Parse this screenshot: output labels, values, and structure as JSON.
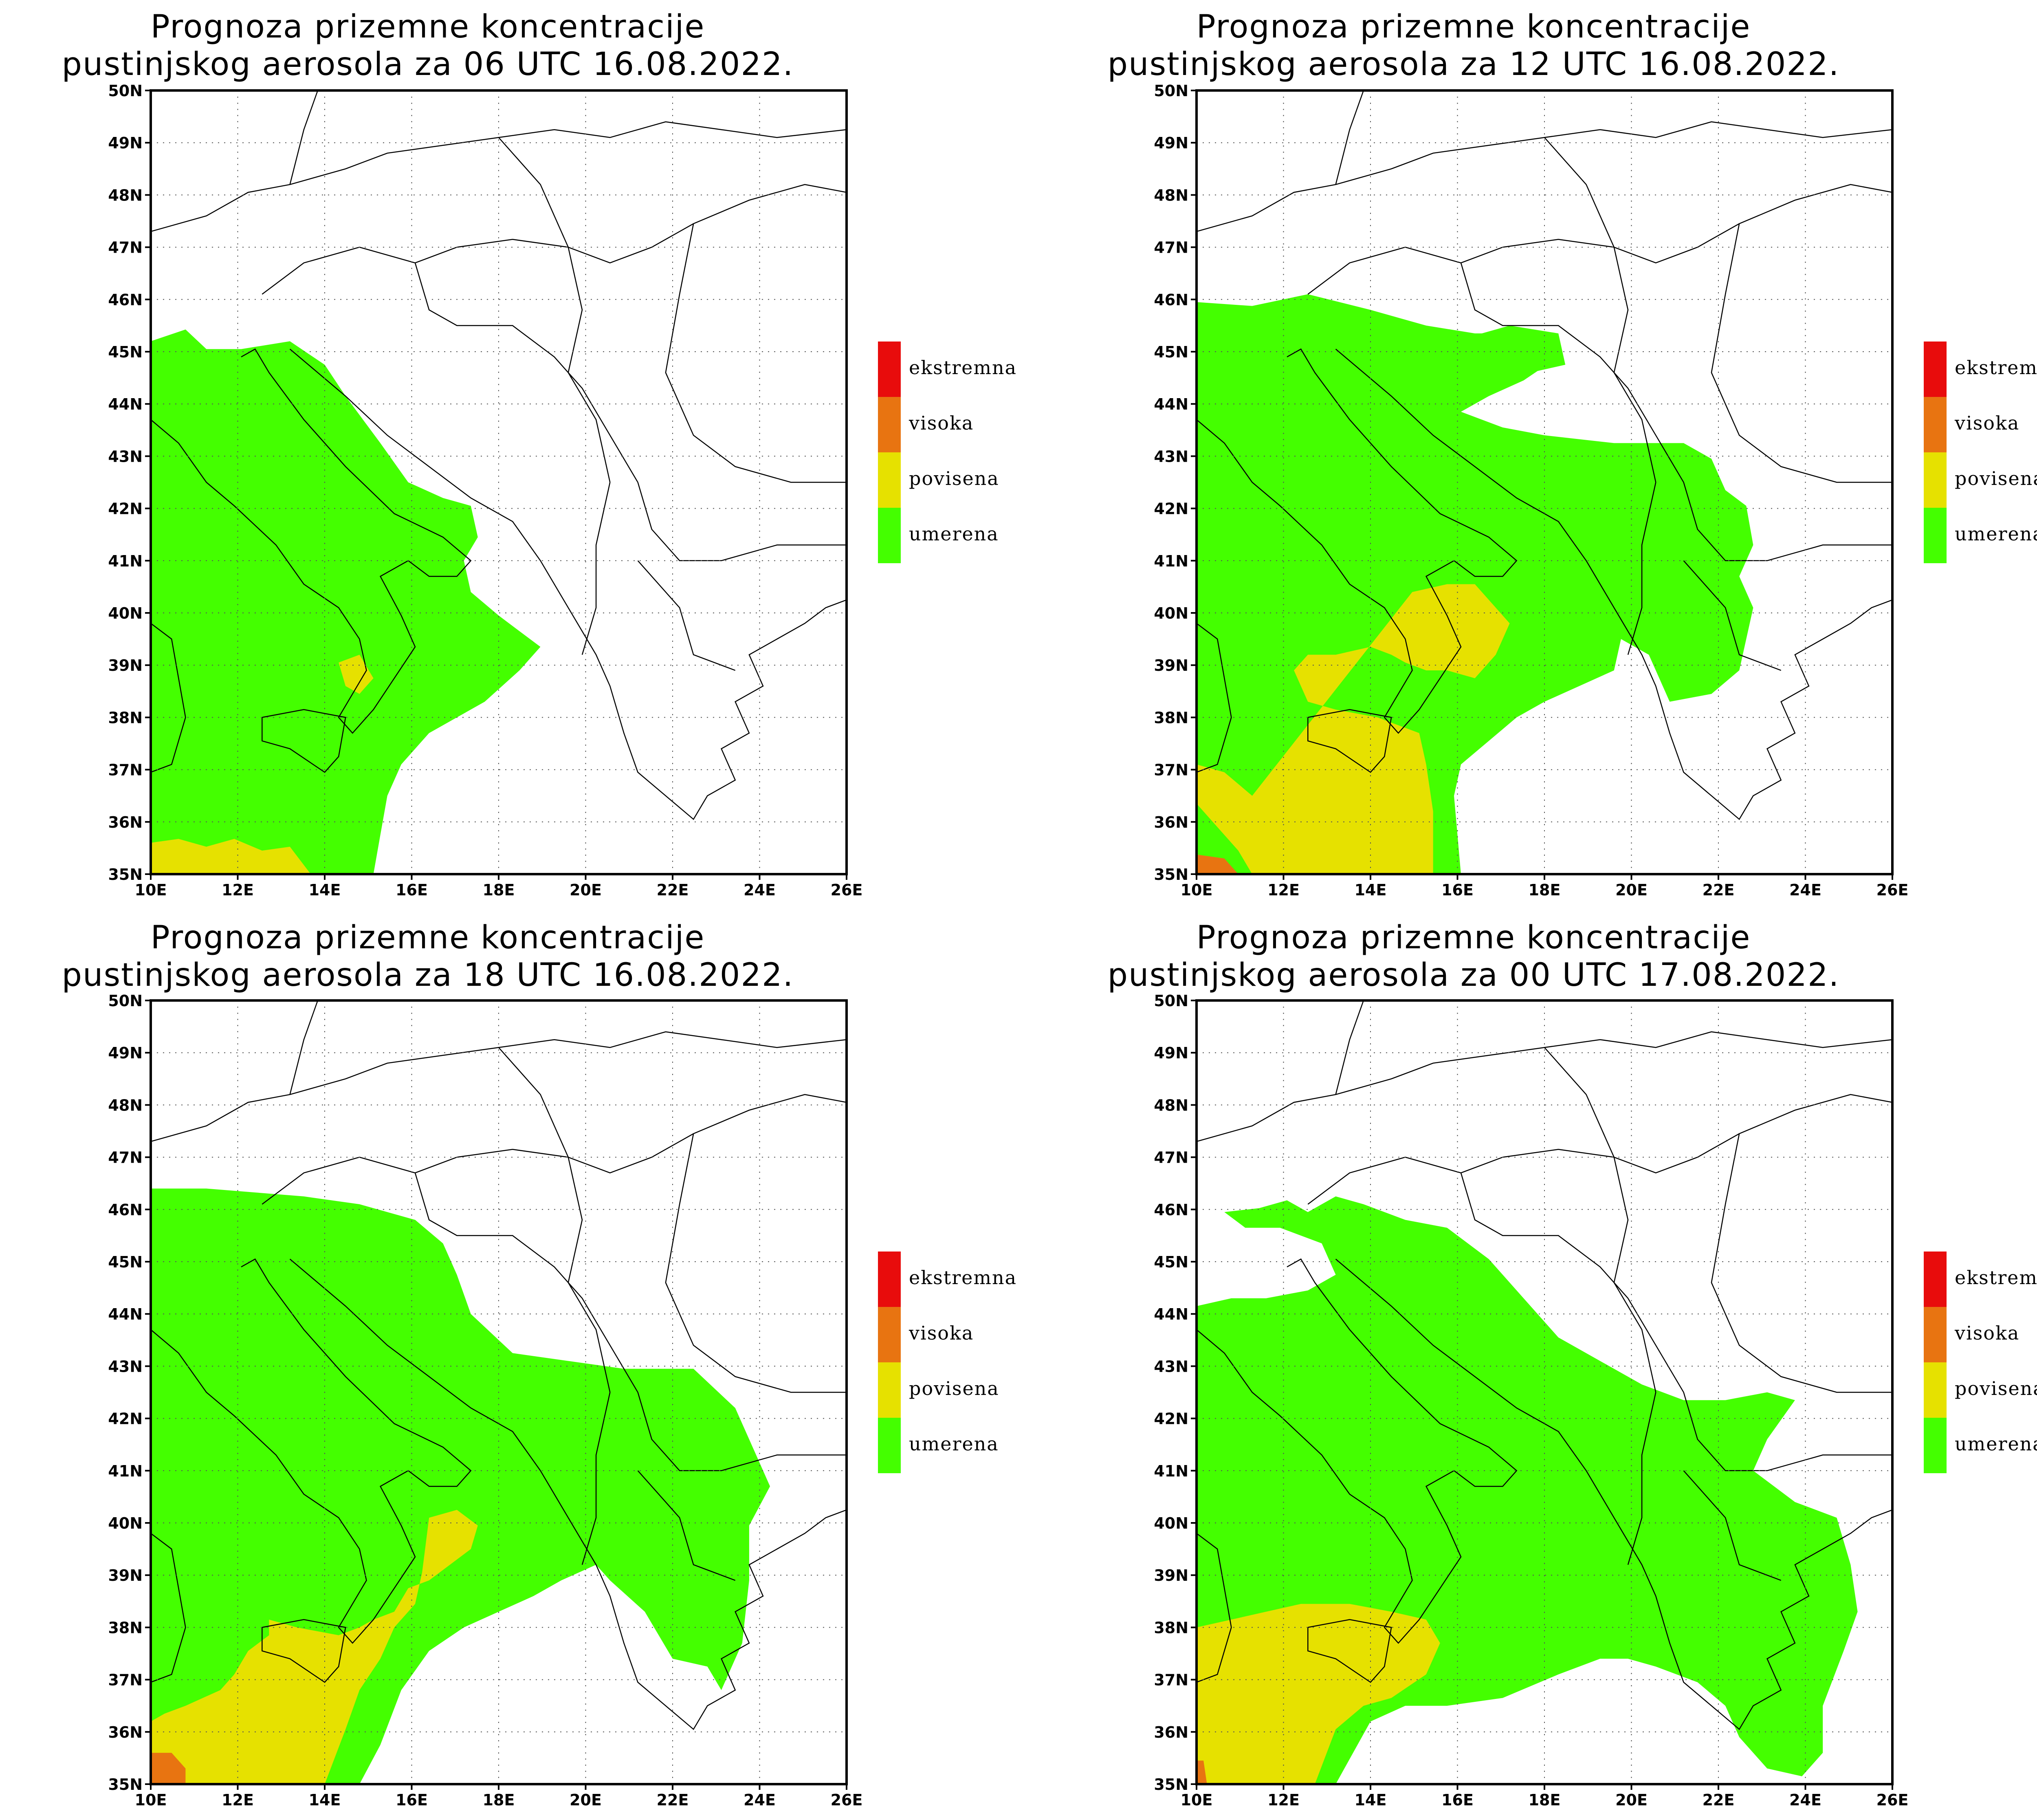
{
  "panels": [
    {
      "id": "p1",
      "line1": "Prognoza prizemne koncentracije",
      "line2": "pustinjskog aerosola za 06 UTC 16.08.2022."
    },
    {
      "id": "p2",
      "line1": "Prognoza prizemne koncentracije",
      "line2": "pustinjskog aerosola za 12 UTC 16.08.2022."
    },
    {
      "id": "p3",
      "line1": "Prognoza prizemne koncentracije",
      "line2": "pustinjskog aerosola za 18 UTC 16.08.2022."
    },
    {
      "id": "p4",
      "line1": "Prognoza prizemne koncentracije",
      "line2": "pustinjskog aerosola za 00 UTC 17.08.2022."
    }
  ],
  "axes": {
    "lat_labels": [
      "50N",
      "49N",
      "48N",
      "47N",
      "46N",
      "45N",
      "44N",
      "43N",
      "42N",
      "41N",
      "40N",
      "39N",
      "38N",
      "37N",
      "36N",
      "35N"
    ],
    "lon_labels": [
      "10E",
      "12E",
      "14E",
      "16E",
      "18E",
      "20E",
      "22E",
      "24E",
      "26E"
    ]
  },
  "legend": [
    {
      "label": "ekstremna",
      "color": "#e80c0c"
    },
    {
      "label": "visoka",
      "color": "#e87411"
    },
    {
      "label": "povisena",
      "color": "#e6e100"
    },
    {
      "label": "umerena",
      "color": "#44ff00"
    }
  ],
  "colors": {
    "umerena": "#44ff00",
    "povisena": "#e6e100",
    "visoka": "#e87411",
    "ekstremna": "#e80c0c"
  }
}
